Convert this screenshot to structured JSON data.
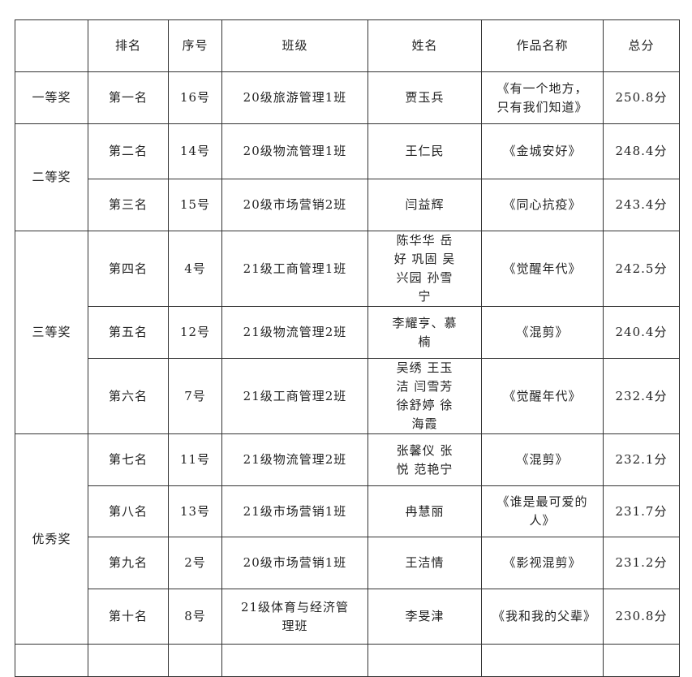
{
  "headers": [
    "",
    "排名",
    "序号",
    "班级",
    "姓名",
    "作品名称",
    "总分"
  ],
  "groups": [
    {
      "award": "一等奖",
      "rows": [
        {
          "rank": "第一名",
          "no": "16号",
          "class": "20级旅游管理1班",
          "name": "贾玉兵",
          "work": "《有一个地方，只有我们知道》",
          "score": "250.8分"
        }
      ]
    },
    {
      "award": "二等奖",
      "rows": [
        {
          "rank": "第二名",
          "no": "14号",
          "class": "20级物流管理1班",
          "name": "王仁民",
          "work": "《金城安好》",
          "score": "248.4分"
        },
        {
          "rank": "第三名",
          "no": "15号",
          "class": "20级市场营销2班",
          "name": "闫益辉",
          "work": "《同心抗疫》",
          "score": "243.4分"
        }
      ]
    },
    {
      "award": "三等奖",
      "rows": [
        {
          "rank": "第四名",
          "no": "4号",
          "class": "21级工商管理1班",
          "name": "陈华华 岳好 巩固 吴兴园 孙雪宁",
          "work": "《觉醒年代》",
          "score": "242.5分"
        },
        {
          "rank": "第五名",
          "no": "12号",
          "class": "21级物流管理2班",
          "name": "李耀亨、慕楠",
          "work": "《混剪》",
          "score": "240.4分"
        },
        {
          "rank": "第六名",
          "no": "7号",
          "class": "21级工商管理2班",
          "name": "吴绣 王玉洁 闫雪芳 徐舒婷 徐海霞",
          "work": "《觉醒年代》",
          "score": "232.4分"
        }
      ]
    },
    {
      "award": "优秀奖",
      "rows": [
        {
          "rank": "第七名",
          "no": "11号",
          "class": "21级物流管理2班",
          "name": "张馨仪 张悦 范艳宁",
          "work": "《混剪》",
          "score": "232.1分"
        },
        {
          "rank": "第八名",
          "no": "13号",
          "class": "21级市场营销1班",
          "name": "冉慧丽",
          "work": "《谁是最可爱的人》",
          "score": "231.7分"
        },
        {
          "rank": "第九名",
          "no": "2号",
          "class": "20级市场营销1班",
          "name": "王洁情",
          "work": "《影视混剪》",
          "score": "231.2分"
        },
        {
          "rank": "第十名",
          "no": "8号",
          "class": "21级体育与经济管理班",
          "name": "李旻津",
          "work": "《我和我的父辈》",
          "score": "230.8分"
        }
      ]
    }
  ]
}
